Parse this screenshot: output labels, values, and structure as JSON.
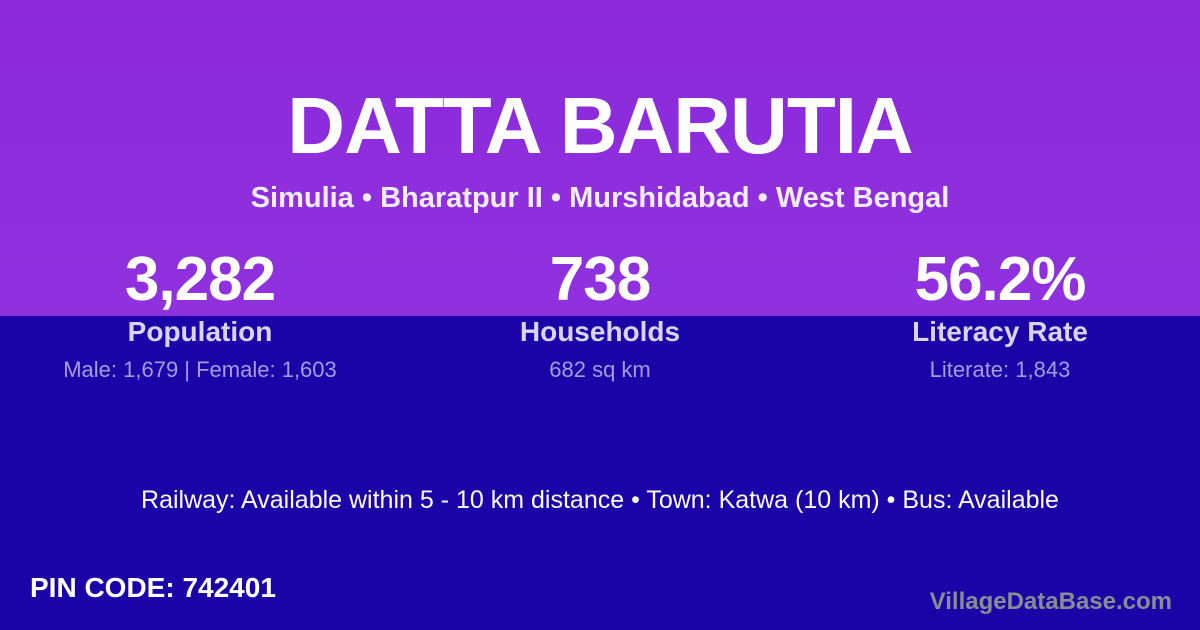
{
  "colors": {
    "top_background": "#8C2BDC",
    "bottom_background": "#1B03A8",
    "title_text": "#FFFFFF",
    "stat_label_text": "#DAD3F4",
    "stat_detail_text": "#A79BDF",
    "watermark_text": "#8B8B93"
  },
  "header": {
    "title": "DATTA BARUTIA",
    "subtitle": "Simulia • Bharatpur II • Murshidabad • West Bengal"
  },
  "stats": [
    {
      "value": "3,282",
      "label": "Population",
      "detail": "Male: 1,679 | Female: 1,603"
    },
    {
      "value": "738",
      "label": "Households",
      "detail": "682 sq km"
    },
    {
      "value": "56.2%",
      "label": "Literacy Rate",
      "detail": "Literate: 1,843"
    }
  ],
  "transport_info": "Railway: Available within 5 - 10 km distance  •  Town: Katwa (10 km)  •  Bus: Available",
  "footer": {
    "pin_code": "PIN CODE: 742401",
    "watermark": "VillageDataBase.com"
  }
}
